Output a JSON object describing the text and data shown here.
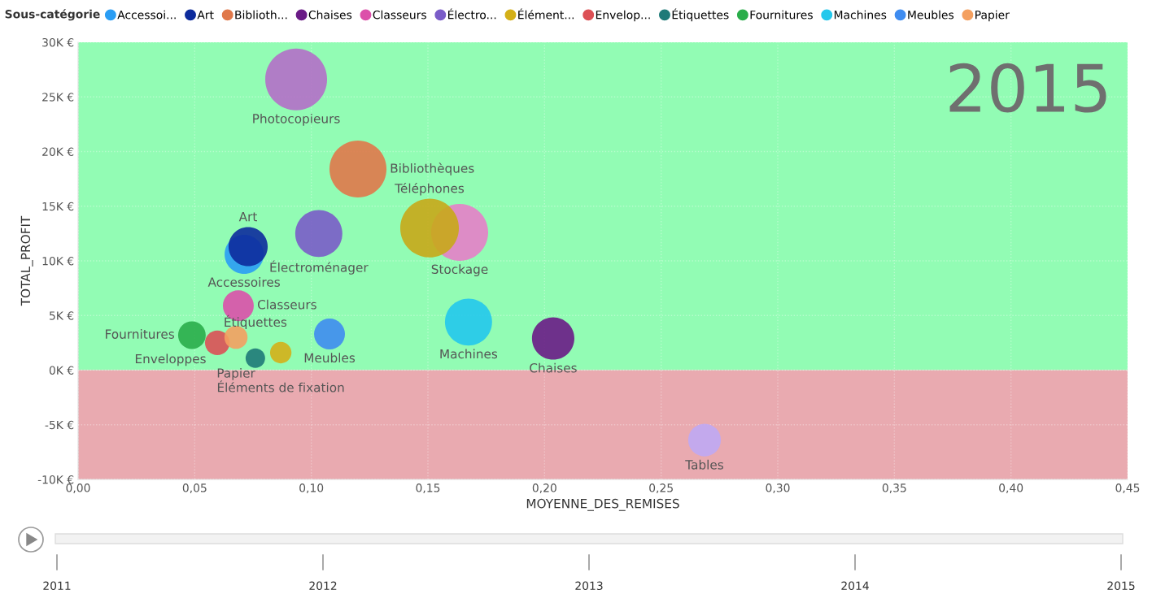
{
  "chart_data": {
    "type": "bubble",
    "xlabel": "MOYENNE_DES_REMISES",
    "ylabel": "TOTAL_PROFIT",
    "legend_title": "Sous-catégorie",
    "legend": "top left",
    "grid": true,
    "xlim": [
      0,
      0.45
    ],
    "xticks": [
      {
        "value": 0,
        "label": "0,00"
      },
      {
        "value": 0.05,
        "label": "0,05"
      },
      {
        "value": 0.1,
        "label": "0,10"
      },
      {
        "value": 0.15,
        "label": "0,15"
      },
      {
        "value": 0.2,
        "label": "0,20"
      },
      {
        "value": 0.25,
        "label": "0,25"
      },
      {
        "value": 0.3,
        "label": "0,30"
      },
      {
        "value": 0.35,
        "label": "0,35"
      },
      {
        "value": 0.4,
        "label": "0,40"
      },
      {
        "value": 0.45,
        "label": "0,45"
      }
    ],
    "ylim": [
      -10000,
      30000
    ],
    "yticks": [
      {
        "value": -10000,
        "label": "-10K €"
      },
      {
        "value": -5000,
        "label": "-5K €"
      },
      {
        "value": 0,
        "label": "0K €"
      },
      {
        "value": 5000,
        "label": "5K €"
      },
      {
        "value": 10000,
        "label": "10K €"
      },
      {
        "value": 15000,
        "label": "15K €"
      },
      {
        "value": 20000,
        "label": "20K €"
      },
      {
        "value": 25000,
        "label": "25K €"
      },
      {
        "value": 30000,
        "label": "30K €"
      }
    ],
    "bands": [
      {
        "axis": "y",
        "from": 0,
        "to": 30000,
        "color": "#92fcb4"
      },
      {
        "axis": "y",
        "from": -10000,
        "to": 0,
        "color": "#e9aab0"
      }
    ],
    "series": [
      {
        "name": "Accessoi...",
        "color": "#2a9df4",
        "x": [
          0.0712
        ],
        "values": [
          10600
        ],
        "sizes": [
          0.4
        ]
      },
      {
        "name": "Art",
        "color": "#0d2b9c",
        "x": [
          0.0729
        ],
        "values": [
          11300
        ],
        "sizes": [
          0.4
        ]
      },
      {
        "name": "Biblioth...",
        "color": "#e0784a",
        "x": [
          0.12
        ],
        "values": [
          18400
        ],
        "sizes": [
          0.85
        ]
      },
      {
        "name": "Chaises",
        "color": "#6a1b86",
        "x": [
          0.2037
        ],
        "values": [
          2900
        ],
        "sizes": [
          0.47
        ]
      },
      {
        "name": "Classeurs",
        "color": "#dc50aa",
        "x": [
          0.0687
        ],
        "values": [
          5900
        ],
        "sizes": [
          0.25
        ]
      },
      {
        "name": "Électro...",
        "color": "#7a5cc8",
        "x": [
          0.1032
        ],
        "values": [
          12500
        ],
        "sizes": [
          0.58
        ]
      },
      {
        "name": "Élément...",
        "color": "#d4b018",
        "x": [
          0.0869
        ],
        "values": [
          1600
        ],
        "sizes": [
          0.12
        ]
      },
      {
        "name": "Envelop...",
        "color": "#dc5055",
        "x": [
          0.0597
        ],
        "values": [
          2500
        ],
        "sizes": [
          0.16
        ]
      },
      {
        "name": "Étiquettes",
        "color": "#1f7a78",
        "x": [
          0.076
        ],
        "values": [
          1100
        ],
        "sizes": [
          0.1
        ]
      },
      {
        "name": "Fournitures",
        "color": "#2aad4a",
        "x": [
          0.0488
        ],
        "values": [
          3200
        ],
        "sizes": [
          0.2
        ]
      },
      {
        "name": "Machines",
        "color": "#24c8ec",
        "x": [
          0.1674
        ],
        "values": [
          4400
        ],
        "sizes": [
          0.58
        ]
      },
      {
        "name": "Meubles",
        "color": "#3f8cf0",
        "x": [
          0.1078
        ],
        "values": [
          3300
        ],
        "sizes": [
          0.25
        ]
      },
      {
        "name": "Papier",
        "color": "#f4a060",
        "x": [
          0.0677
        ],
        "values": [
          3000
        ],
        "sizes": [
          0.14
        ]
      },
      {
        "color": "#b46fc8",
        "x": [
          0.0935
        ],
        "values": [
          26600
        ],
        "sizes": [
          1
        ]
      },
      {
        "color": "#e67fc8",
        "x": [
          0.1636
        ],
        "values": [
          12600
        ],
        "sizes": [
          0.85
        ]
      },
      {
        "color": "#c8a818",
        "x": [
          0.1507
        ],
        "values": [
          13000
        ],
        "sizes": [
          0.9
        ]
      },
      {
        "color": "#bfa8f4",
        "x": [
          0.2686
        ],
        "values": [
          -6400
        ],
        "sizes": [
          0.28
        ]
      }
    ],
    "annotations": [
      {
        "text": "Accessoires",
        "x": 0.0712,
        "y": 10600
      },
      {
        "text": "Art",
        "x": 0.0729,
        "y": 11300
      },
      {
        "text": "Bibliothèques",
        "x": 0.12,
        "y": 18400
      },
      {
        "text": "Chaises",
        "x": 0.2037,
        "y": 2900
      },
      {
        "text": "Classeurs",
        "x": 0.0687,
        "y": 5900
      },
      {
        "text": "Électroménager",
        "x": 0.1032,
        "y": 12500
      },
      {
        "text": "Éléments de fixation",
        "x": 0.0869,
        "y": 1600
      },
      {
        "text": "Enveloppes",
        "x": 0.0597,
        "y": 2500
      },
      {
        "text": "Étiquettes",
        "x": 0.076,
        "y": 1100
      },
      {
        "text": "Fournitures",
        "x": 0.0488,
        "y": 3200
      },
      {
        "text": "Machines",
        "x": 0.1674,
        "y": 4400
      },
      {
        "text": "Meubles",
        "x": 0.1078,
        "y": 3300
      },
      {
        "text": "Papier",
        "x": 0.0677,
        "y": 3000
      },
      {
        "text": "Photocopieurs",
        "x": 0.0935,
        "y": 26600
      },
      {
        "text": "Stockage",
        "x": 0.1636,
        "y": 12600
      },
      {
        "text": "Téléphones",
        "x": 0.1507,
        "y": 13000
      },
      {
        "text": "Tables",
        "x": 0.2686,
        "y": -6400
      },
      "2015",
      "2011",
      "2012",
      "2013",
      "2014",
      "2015"
    ]
  }
}
